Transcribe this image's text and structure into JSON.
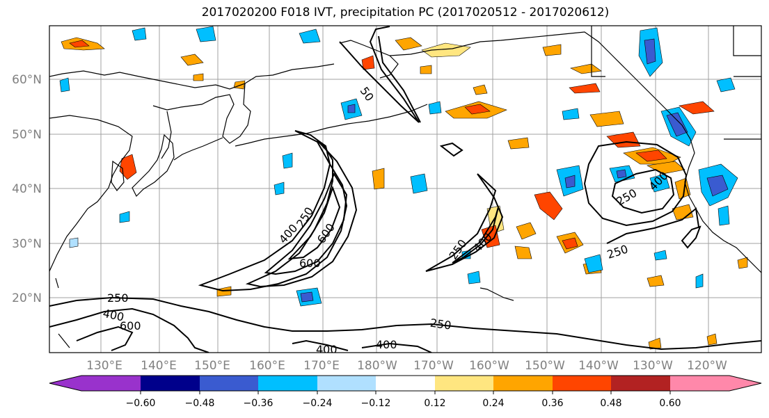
{
  "title": "2017020200 F018 IVT, precipitation PC (2017020512 - 2017020612)",
  "map": {
    "lat_labels": [
      "60°N",
      "50°N",
      "40°N",
      "30°N",
      "20°N"
    ],
    "lon_labels": [
      "130°E",
      "140°E",
      "150°E",
      "160°E",
      "170°E",
      "180°W",
      "170°W",
      "160°W",
      "150°W",
      "140°W",
      "130°W",
      "120°W"
    ],
    "gridlines": true,
    "contour_labels": [
      "250",
      "400",
      "600",
      "250",
      "400",
      "600",
      "250",
      "400",
      "250",
      "400",
      "250",
      "250",
      "400",
      "400",
      "600",
      "50"
    ]
  },
  "colorbar": {
    "ticks": [
      "−0.60",
      "−0.48",
      "−0.36",
      "−0.24",
      "−0.12",
      "0.12",
      "0.24",
      "0.36",
      "0.48",
      "0.60"
    ],
    "colors": [
      "#9932cc",
      "#00008b",
      "#3a5bd0",
      "#00bfff",
      "#b0e0ff",
      "#ffffff",
      "#ffe680",
      "#ffa500",
      "#ff4500",
      "#b22222",
      "#ff88aa"
    ]
  }
}
